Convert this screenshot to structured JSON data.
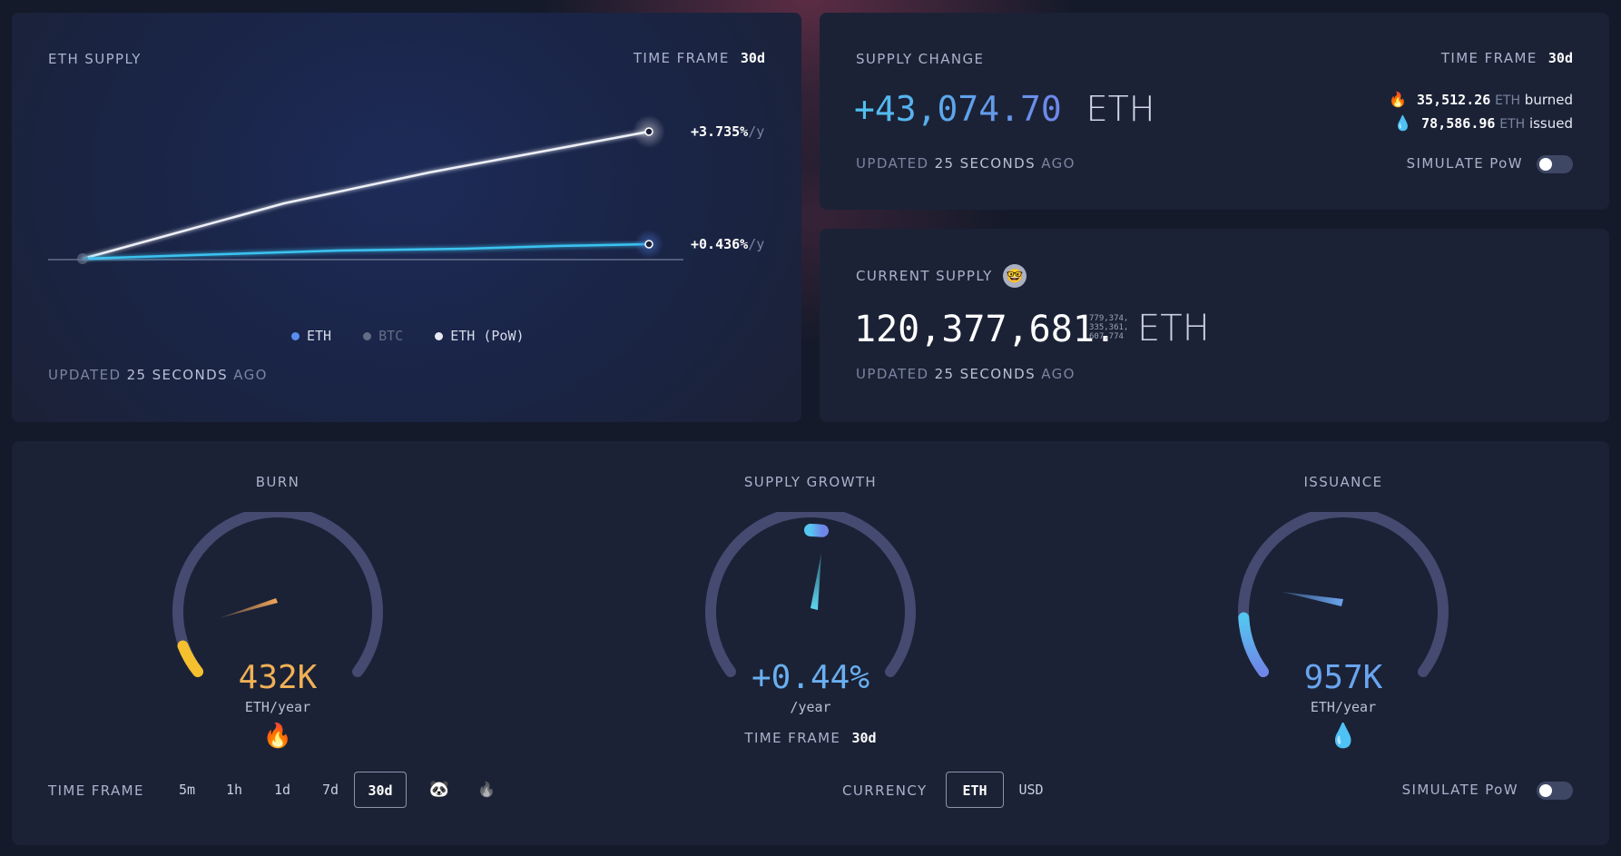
{
  "eth_supply": {
    "title": "ETH SUPPLY",
    "time_frame_label": "TIME FRAME",
    "time_frame_value": "30d",
    "series": [
      {
        "name": "ETH (PoW)",
        "end_label": "+3.735%",
        "unit": "/y",
        "color": "#e6e9f2"
      },
      {
        "name": "ETH",
        "end_label": "+0.436%",
        "unit": "/y",
        "color": "#3ac3f0"
      }
    ],
    "legend": [
      {
        "name": "ETH",
        "color": "#5b8df0"
      },
      {
        "name": "BTC",
        "color": "#646c86"
      },
      {
        "name": "ETH (PoW)",
        "color": "#e6e9f2"
      }
    ],
    "updated_prefix": "UPDATED",
    "updated_value": "25 SECONDS",
    "updated_suffix": "AGO"
  },
  "supply_change": {
    "title": "SUPPLY CHANGE",
    "time_frame_label": "TIME FRAME",
    "time_frame_value": "30d",
    "value": "+43,074.70",
    "unit": "ETH",
    "burned_value": "35,512.26",
    "burned_unit": "ETH",
    "burned_label": "burned",
    "issued_value": "78,586.96",
    "issued_unit": "ETH",
    "issued_label": "issued",
    "updated_prefix": "UPDATED",
    "updated_value": "25 SECONDS",
    "updated_suffix": "AGO",
    "simulate_label": "SIMULATE PoW"
  },
  "current_supply": {
    "title": "CURRENT SUPPLY",
    "value": "120,377,681.",
    "decimals_line1": "779,374,",
    "decimals_line2": "335,361,",
    "decimals_line3": "607,774",
    "unit": "ETH",
    "updated_prefix": "UPDATED",
    "updated_value": "25 SECONDS",
    "updated_suffix": "AGO"
  },
  "gauges": {
    "burn": {
      "title": "BURN",
      "value": "432K",
      "unit": "ETH/year",
      "color": "#f5a65b"
    },
    "growth": {
      "title": "SUPPLY GROWTH",
      "value": "+0.44%",
      "unit": "/year",
      "time_frame_label": "TIME FRAME",
      "time_frame_value": "30d"
    },
    "issuance": {
      "title": "ISSUANCE",
      "value": "957K",
      "unit": "ETH/year",
      "color": "#6aa5f0"
    }
  },
  "controls": {
    "time_frame_label": "TIME FRAME",
    "time_frames": [
      "5m",
      "1h",
      "1d",
      "7d",
      "30d"
    ],
    "active_time_frame": "30d",
    "currency_label": "CURRENCY",
    "currency_options": [
      "ETH",
      "USD"
    ],
    "active_currency": "ETH",
    "simulate_label": "SIMULATE PoW"
  }
}
